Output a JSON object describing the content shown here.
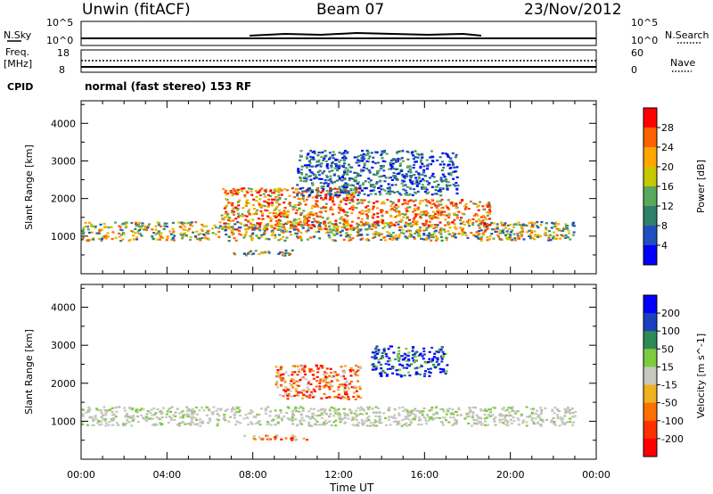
{
  "header": {
    "station": "Unwin (fitACF)",
    "beam": "Beam 07",
    "date": "23/Nov/2012"
  },
  "top_panels": {
    "nsky_label": "N.Sky",
    "nsearch_label": "N.Search",
    "nsky_ticks": [
      "10^5",
      "10^0"
    ],
    "nsearch_ticks": [
      "10^5",
      "10^0"
    ],
    "freq_label": [
      "Freq.",
      "[MHz]"
    ],
    "freq_ticks": [
      "18",
      "8"
    ],
    "nave_label": "Nave",
    "nave_ticks": [
      "60",
      "0"
    ],
    "cpid_label": "CPID",
    "cpid_text": "normal (fast stereo) 153 RF"
  },
  "chart_data": [
    {
      "type": "heatmap",
      "name": "power",
      "title": "",
      "xlabel": "Time UT",
      "ylabel": "Slant Range [km]",
      "xlim": [
        0,
        24
      ],
      "ylim": [
        0,
        4600
      ],
      "x_ticks": [
        "00:00",
        "04:00",
        "08:00",
        "12:00",
        "16:00",
        "20:00",
        "00:00"
      ],
      "y_ticks": [
        1000,
        2000,
        3000,
        4000
      ],
      "colorbar": {
        "label": "Power [dB]",
        "ticks": [
          4,
          8,
          12,
          16,
          20,
          24,
          28
        ],
        "colors": [
          "#0000ff",
          "#1f4fbf",
          "#2f7f6a",
          "#5aa85a",
          "#c8c800",
          "#ffa500",
          "#ff6000",
          "#ff0000"
        ]
      },
      "regions": [
        {
          "t0": 0.0,
          "t1": 23.0,
          "r0": 900,
          "r1": 1400,
          "level": "mid"
        },
        {
          "t0": 6.5,
          "t1": 13.0,
          "r0": 1200,
          "r1": 2300,
          "level": "high"
        },
        {
          "t0": 13.0,
          "t1": 19.0,
          "r0": 1300,
          "r1": 2000,
          "level": "high"
        },
        {
          "t0": 10.0,
          "t1": 17.5,
          "r0": 2100,
          "r1": 3300,
          "level": "low"
        },
        {
          "t0": 7.0,
          "t1": 10.0,
          "r0": 500,
          "r1": 650,
          "level": "mid"
        }
      ]
    },
    {
      "type": "heatmap",
      "name": "velocity",
      "title": "",
      "xlabel": "Time UT",
      "ylabel": "Slant Range [km]",
      "xlim": [
        0,
        24
      ],
      "ylim": [
        0,
        4600
      ],
      "x_ticks": [
        "00:00",
        "04:00",
        "08:00",
        "12:00",
        "16:00",
        "20:00",
        "00:00"
      ],
      "y_ticks": [
        1000,
        2000,
        3000,
        4000
      ],
      "colorbar": {
        "label": "Velocity [m s^-1]",
        "ticks": [
          200,
          100,
          50,
          15,
          -15,
          -50,
          -100,
          -200
        ],
        "colors": [
          "#0000ff",
          "#1a3fbf",
          "#2e8b57",
          "#7ccc3c",
          "#c8c8c0",
          "#f0b020",
          "#ff7000",
          "#ff3000",
          "#ff0000"
        ]
      },
      "regions": [
        {
          "t0": 0.0,
          "t1": 23.0,
          "r0": 900,
          "r1": 1400,
          "level": "grey"
        },
        {
          "t0": 9.0,
          "t1": 13.0,
          "r0": 1600,
          "r1": 2500,
          "level": "orange"
        },
        {
          "t0": 13.5,
          "t1": 17.0,
          "r0": 2200,
          "r1": 3000,
          "level": "blue"
        },
        {
          "t0": 7.5,
          "t1": 10.5,
          "r0": 500,
          "r1": 650,
          "level": "orange"
        }
      ]
    }
  ]
}
